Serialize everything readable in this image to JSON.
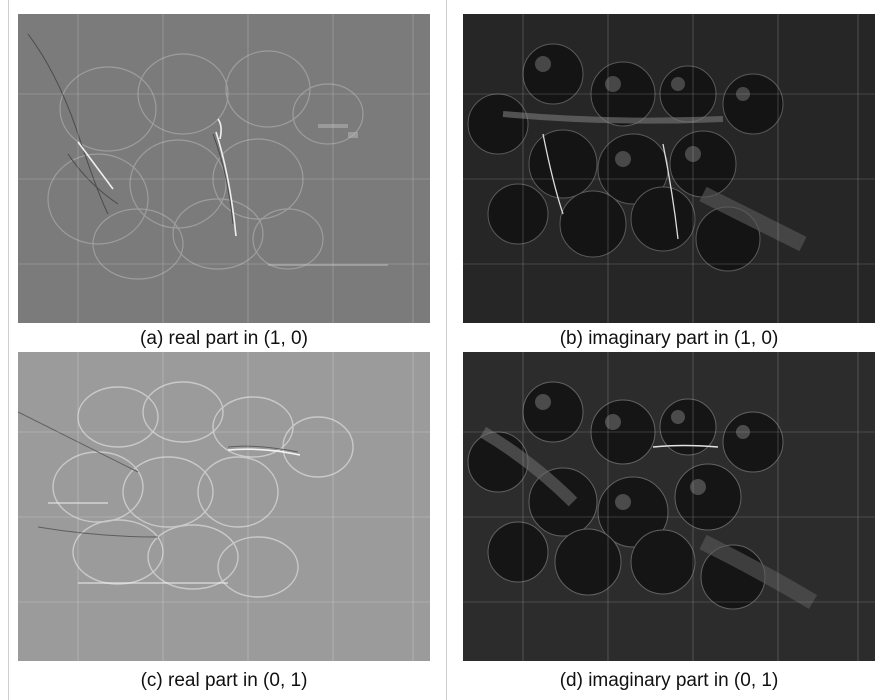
{
  "panels": [
    {
      "id": "a",
      "caption": "(a) real part in (1, 0)",
      "tone": "gray",
      "bg": "#7d7d7d"
    },
    {
      "id": "b",
      "caption": "(b) imaginary part in (1, 0)",
      "tone": "dark",
      "bg": "#2a2a2a"
    },
    {
      "id": "c",
      "caption": "(c) real part in (0, 1)",
      "tone": "light",
      "bg": "#9a9a9a"
    },
    {
      "id": "d",
      "caption": "(d) imaginary part in (0, 1)",
      "tone": "dark",
      "bg": "#2e2e2e"
    }
  ]
}
